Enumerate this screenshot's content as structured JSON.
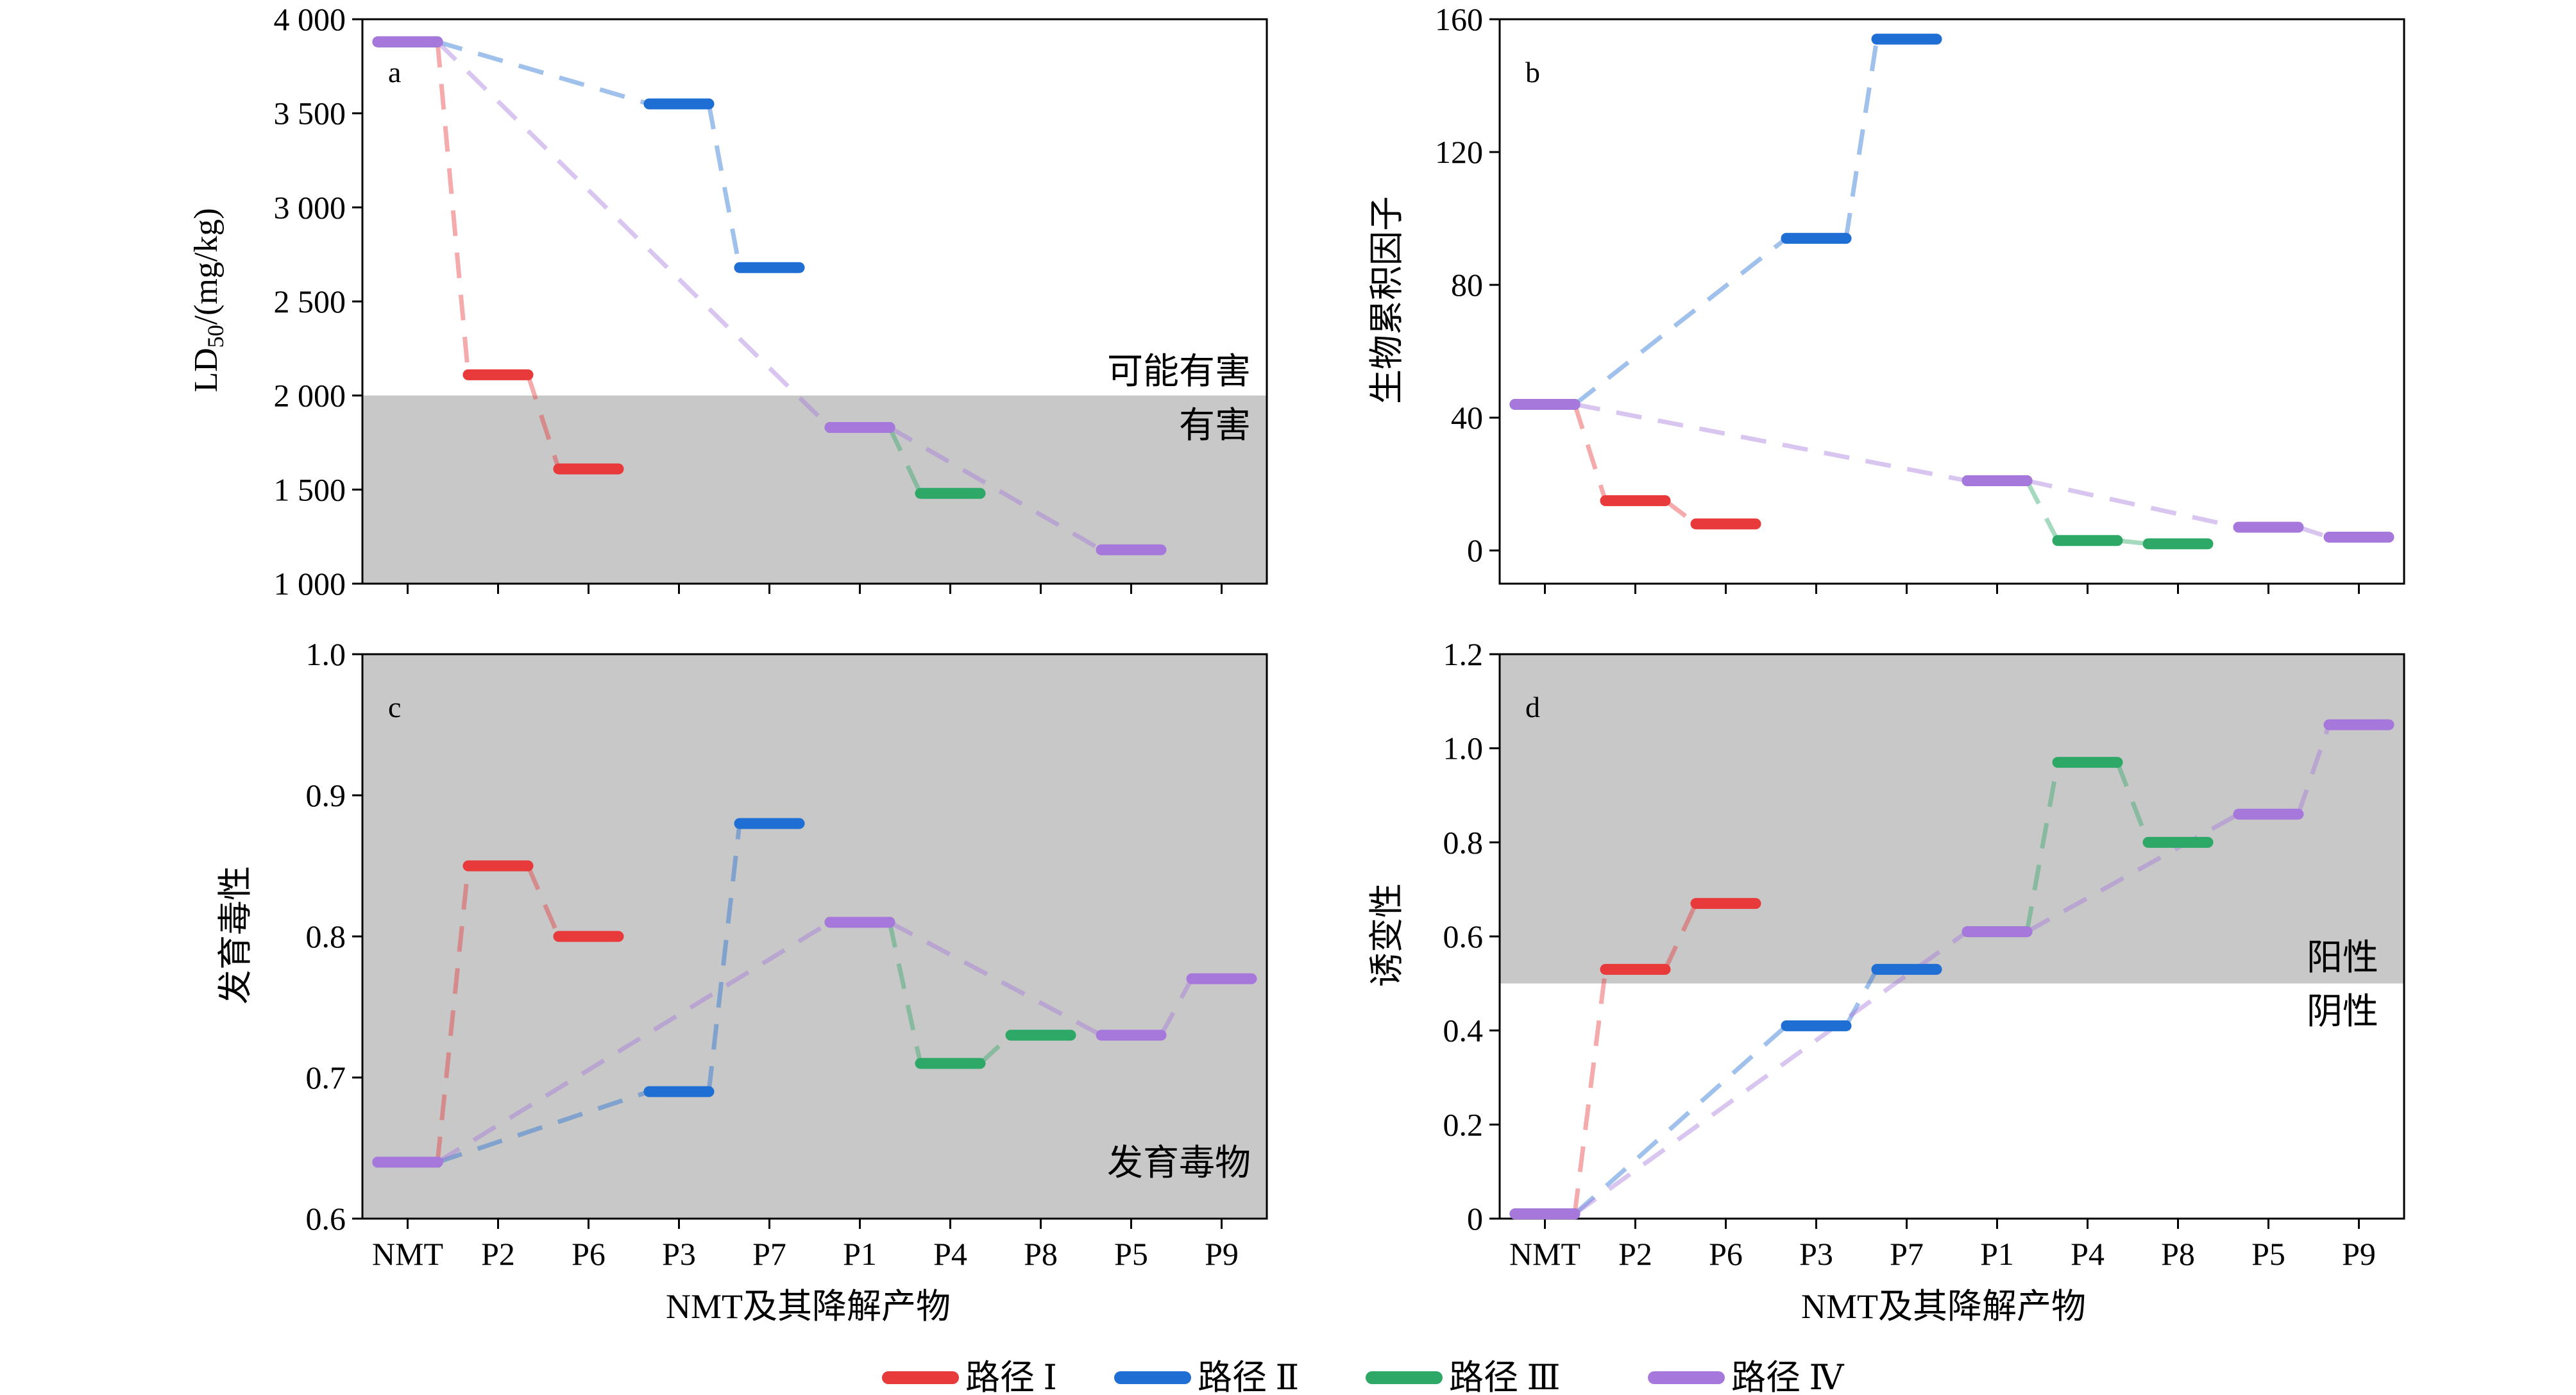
{
  "figure": {
    "categories": [
      "NMT",
      "P2",
      "P6",
      "P3",
      "P7",
      "P1",
      "P4",
      "P8",
      "P5",
      "P9"
    ],
    "xlabel": "NMT及其降解产物",
    "legend_position": "bottom-center",
    "legend": [
      {
        "name": "路径 Ⅰ",
        "color": "#e8393b"
      },
      {
        "name": "路径 Ⅱ",
        "color": "#1f6ed4"
      },
      {
        "name": "路径 Ⅲ",
        "color": "#2ea866"
      },
      {
        "name": "路径 Ⅳ",
        "color": "#a678dc"
      }
    ],
    "shade_color": "#c8c8c8"
  },
  "chart_data": [
    {
      "type": "line",
      "panel": "a",
      "ylabel": "LD50/(mg/kg)",
      "ylim": [
        1000,
        4000
      ],
      "yticks": [
        1000,
        1500,
        2000,
        2500,
        3000,
        3500,
        4000
      ],
      "ytick_labels": [
        "1 000",
        "1 500",
        "2 000",
        "2 500",
        "3 000",
        "3 500",
        "4 000"
      ],
      "threshold": 2000,
      "shade": "below",
      "annotations": [
        "可能有害",
        "有害"
      ],
      "series": [
        {
          "name": "路径 Ⅰ",
          "points": [
            [
              "NMT",
              3880
            ],
            [
              "P2",
              2110
            ],
            [
              "P6",
              1610
            ]
          ]
        },
        {
          "name": "路径 Ⅱ",
          "points": [
            [
              "NMT",
              3880
            ],
            [
              "P3",
              3550
            ],
            [
              "P7",
              2680
            ]
          ]
        },
        {
          "name": "路径 Ⅲ",
          "points": [
            [
              "P1",
              1830
            ],
            [
              "P4",
              1480
            ]
          ]
        },
        {
          "name": "路径 Ⅳ",
          "points": [
            [
              "NMT",
              3880
            ],
            [
              "P1",
              1830
            ],
            [
              "P5",
              1180
            ]
          ]
        }
      ]
    },
    {
      "type": "line",
      "panel": "b",
      "ylabel": "生物累积因子",
      "ylim": [
        -10,
        160
      ],
      "yticks": [
        0,
        40,
        80,
        120,
        160
      ],
      "ytick_labels": [
        "0",
        "40",
        "80",
        "120",
        "160"
      ],
      "threshold": null,
      "shade": "none",
      "annotations": [],
      "series": [
        {
          "name": "路径 Ⅰ",
          "points": [
            [
              "NMT",
              44
            ],
            [
              "P2",
              15
            ],
            [
              "P6",
              8
            ]
          ]
        },
        {
          "name": "路径 Ⅱ",
          "points": [
            [
              "NMT",
              44
            ],
            [
              "P3",
              94
            ],
            [
              "P7",
              154
            ]
          ]
        },
        {
          "name": "路径 Ⅲ",
          "points": [
            [
              "P1",
              21
            ],
            [
              "P4",
              3
            ],
            [
              "P8",
              2
            ]
          ]
        },
        {
          "name": "路径 Ⅳ",
          "points": [
            [
              "NMT",
              44
            ],
            [
              "P1",
              21
            ],
            [
              "P5",
              7
            ],
            [
              "P9",
              4
            ]
          ]
        }
      ]
    },
    {
      "type": "line",
      "panel": "c",
      "ylabel": "发育毒性",
      "ylim": [
        0.6,
        1.0
      ],
      "yticks": [
        0.6,
        0.7,
        0.8,
        0.9,
        1.0
      ],
      "ytick_labels": [
        "0.6",
        "0.7",
        "0.8",
        "0.9",
        "1.0"
      ],
      "threshold": null,
      "shade": "all",
      "annotations": [
        "发育毒物"
      ],
      "series": [
        {
          "name": "路径 Ⅰ",
          "points": [
            [
              "NMT",
              0.64
            ],
            [
              "P2",
              0.85
            ],
            [
              "P6",
              0.8
            ]
          ]
        },
        {
          "name": "路径 Ⅱ",
          "points": [
            [
              "NMT",
              0.64
            ],
            [
              "P3",
              0.69
            ],
            [
              "P7",
              0.88
            ]
          ]
        },
        {
          "name": "路径 Ⅲ",
          "points": [
            [
              "P1",
              0.81
            ],
            [
              "P4",
              0.71
            ],
            [
              "P8",
              0.73
            ]
          ]
        },
        {
          "name": "路径 Ⅳ",
          "points": [
            [
              "NMT",
              0.64
            ],
            [
              "P1",
              0.81
            ],
            [
              "P5",
              0.73
            ],
            [
              "P9",
              0.77
            ]
          ]
        }
      ]
    },
    {
      "type": "line",
      "panel": "d",
      "ylabel": "诱变性",
      "ylim": [
        0,
        1.2
      ],
      "yticks": [
        0,
        0.2,
        0.4,
        0.6,
        0.8,
        1.0,
        1.2
      ],
      "ytick_labels": [
        "0",
        "0.2",
        "0.4",
        "0.6",
        "0.8",
        "1.0",
        "1.2"
      ],
      "threshold": 0.5,
      "shade": "above",
      "annotations": [
        "阳性",
        "阴性"
      ],
      "series": [
        {
          "name": "路径 Ⅰ",
          "points": [
            [
              "NMT",
              0.01
            ],
            [
              "P2",
              0.53
            ],
            [
              "P6",
              0.67
            ]
          ]
        },
        {
          "name": "路径 Ⅱ",
          "points": [
            [
              "NMT",
              0.01
            ],
            [
              "P3",
              0.41
            ],
            [
              "P7",
              0.53
            ]
          ]
        },
        {
          "name": "路径 Ⅲ",
          "points": [
            [
              "P1",
              0.61
            ],
            [
              "P4",
              0.97
            ],
            [
              "P8",
              0.8
            ]
          ]
        },
        {
          "name": "路径 Ⅳ",
          "points": [
            [
              "NMT",
              0.01
            ],
            [
              "P1",
              0.61
            ],
            [
              "P5",
              0.86
            ],
            [
              "P9",
              1.05
            ]
          ]
        }
      ]
    }
  ]
}
